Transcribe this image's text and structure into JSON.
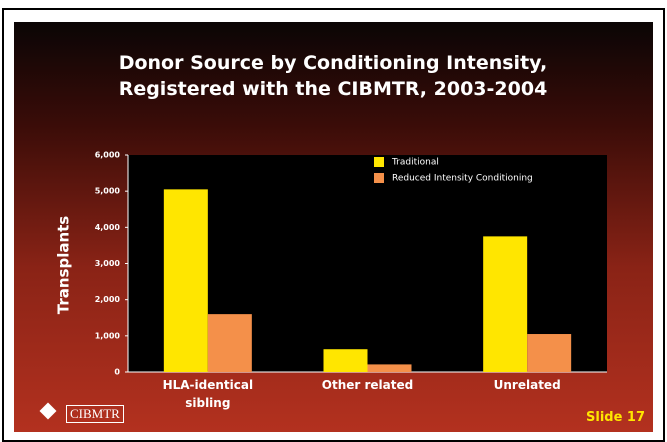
{
  "chart_data": {
    "type": "bar",
    "title": "Donor Source by Conditioning Intensity, Registered with the CIBMTR, 2003-2004",
    "y_label": "Transplants",
    "categories": [
      "HLA-identical sibling",
      "Other related",
      "Unrelated"
    ],
    "series": [
      {
        "name": "Traditional",
        "color": "#ffe600",
        "values": [
          5050,
          630,
          3750
        ]
      },
      {
        "name": "Reduced Intensity Conditioning",
        "color": "#f4904a",
        "values": [
          1600,
          210,
          1050
        ]
      }
    ],
    "ylim": [
      0,
      6000
    ],
    "yticks": [
      0,
      {
        "value": 1000,
        "label": "1,000"
      },
      {
        "value": 2000,
        "label": "2,000"
      },
      {
        "value": 3000,
        "label": "3,000"
      },
      {
        "value": 4000,
        "label": "4,000"
      },
      {
        "value": 5000,
        "label": "5,000"
      },
      {
        "value": 6000,
        "label": "6,000"
      }
    ],
    "grid": false,
    "legend": "top-right"
  },
  "slide": {
    "logo": "CIBMTR",
    "label": "Slide 17"
  }
}
